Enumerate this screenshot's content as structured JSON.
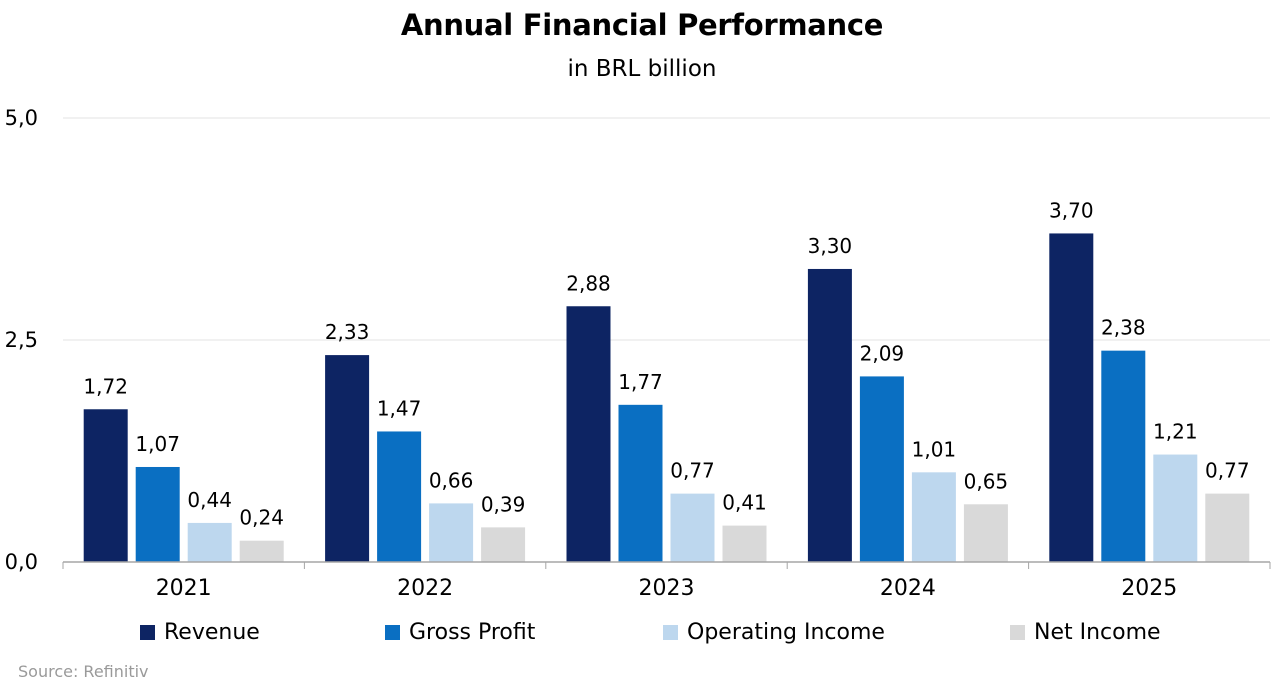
{
  "chart_data": {
    "type": "bar",
    "title": "Annual Financial Performance",
    "subtitle": "in BRL billion",
    "categories": [
      "2021",
      "2022",
      "2023",
      "2024",
      "2025"
    ],
    "series": [
      {
        "name": "Revenue",
        "color": "#0d2463",
        "values": [
          1.72,
          2.33,
          2.88,
          3.3,
          3.7
        ],
        "labels": [
          "1,72",
          "2,33",
          "2,88",
          "3,30",
          "3,70"
        ]
      },
      {
        "name": "Gross Profit",
        "color": "#0a6fc2",
        "values": [
          1.07,
          1.47,
          1.77,
          2.09,
          2.38
        ],
        "labels": [
          "1,07",
          "1,47",
          "1,77",
          "2,09",
          "2,38"
        ]
      },
      {
        "name": "Operating Income",
        "color": "#bdd7ee",
        "values": [
          0.44,
          0.66,
          0.77,
          1.01,
          1.21
        ],
        "labels": [
          "0,44",
          "0,66",
          "0,77",
          "1,01",
          "1,21"
        ]
      },
      {
        "name": "Net Income",
        "color": "#d9d9d9",
        "values": [
          0.24,
          0.39,
          0.41,
          0.65,
          0.77
        ],
        "labels": [
          "0,24",
          "0,39",
          "0,41",
          "0,65",
          "0,77"
        ]
      }
    ],
    "ylim": [
      0,
      5
    ],
    "yticks": [
      0,
      2.5,
      5
    ],
    "ytick_labels": [
      "0,0",
      "2,5",
      "5,0"
    ],
    "grid": true,
    "legend": "bottom"
  },
  "source": "Source: Refinitiv"
}
